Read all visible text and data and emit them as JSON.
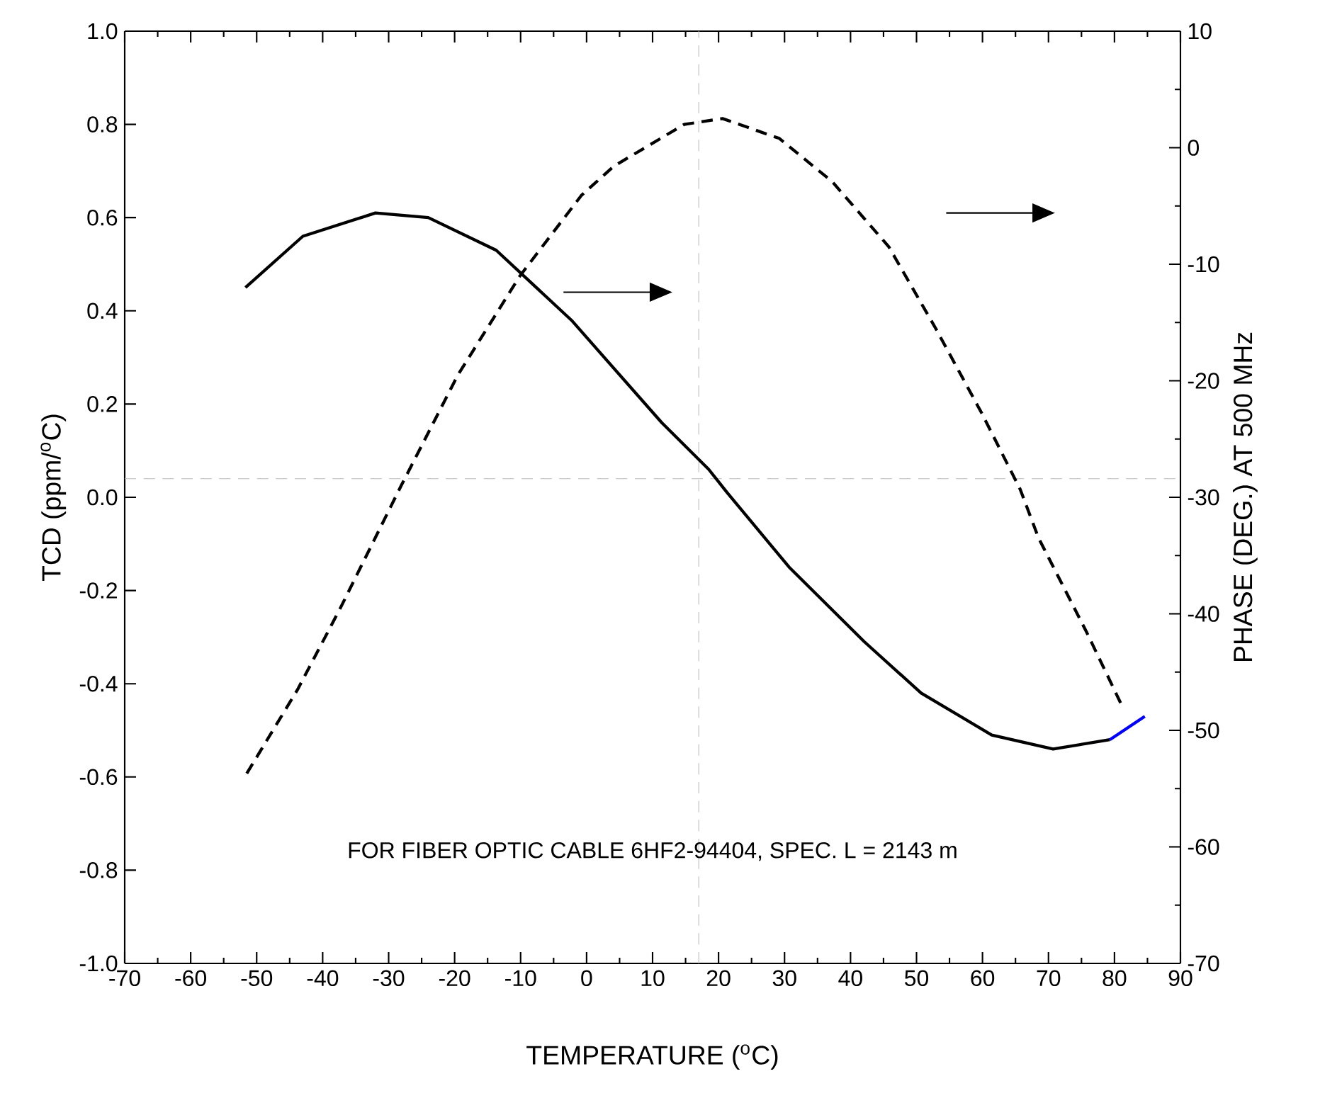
{
  "chart_data": {
    "type": "line",
    "xlabel": "TEMPERATURE ($^{o}$C)",
    "ylabel": "TCD (ppm/$^{o}$C)",
    "y2label": "PHASE (DEG.)  AT 500 MHz",
    "xlim": [
      -70,
      90
    ],
    "xticks": [
      -70,
      -60,
      -50,
      -40,
      -30,
      -20,
      -10,
      0,
      10,
      20,
      30,
      40,
      50,
      60,
      70,
      80,
      90
    ],
    "ylim": [
      -1,
      1
    ],
    "yticks": [
      {
        "value": -1,
        "label": "-1.0"
      },
      {
        "value": -0.8,
        "label": "-0.8"
      },
      {
        "value": -0.6,
        "label": "-0.6"
      },
      {
        "value": -0.4,
        "label": "-0.4"
      },
      {
        "value": -0.2,
        "label": "-0.2"
      },
      {
        "value": 0,
        "label": "0.0"
      },
      {
        "value": 0.2,
        "label": "0.2"
      },
      {
        "value": 0.4,
        "label": "0.4"
      },
      {
        "value": 0.6,
        "label": "0.6"
      },
      {
        "value": 0.8,
        "label": "0.8"
      },
      {
        "value": 1,
        "label": "1.0"
      }
    ],
    "y2lim": [
      -70,
      10
    ],
    "y2ticks": [
      -70,
      -60,
      -50,
      -40,
      -30,
      -20,
      -10,
      0,
      10
    ],
    "marker": "none",
    "series": [
      {
        "color": "#000000",
        "line_style": "solid",
        "x": [
          -51.7,
          -43,
          -32,
          -24,
          -13.7,
          -2.3,
          11.4,
          18.5,
          21.3,
          30.7,
          42.1,
          50.7,
          61.4,
          70.7,
          79.3
        ],
        "values": [
          0.45,
          0.56,
          0.61,
          0.6,
          0.53,
          0.38,
          0.16,
          0.06,
          0.01,
          -0.15,
          -0.31,
          -0.42,
          -0.51,
          -0.54,
          -0.52
        ]
      },
      {
        "color": "#0000ff",
        "line_style": "solid",
        "x": [
          79.3,
          84.6
        ],
        "values": [
          -0.52,
          -0.47
        ]
      },
      {
        "color": "#000000",
        "line_style": "dashed",
        "axis": "y2",
        "x": [
          -51.5,
          -43.8,
          -37.4,
          -28.1,
          -19.5,
          -10.1,
          -0.8,
          4.1,
          14.8,
          20.6,
          29.2,
          37.2,
          45.8,
          52.9,
          59.9,
          65.7,
          68.5,
          75.8,
          81.4
        ],
        "values": [
          -53.7,
          -46.5,
          -39.6,
          -29.0,
          -19.5,
          -11.0,
          -4.1,
          -1.6,
          2.0,
          2.5,
          0.8,
          -2.9,
          -8.5,
          -15.5,
          -22.8,
          -29.3,
          -33.5,
          -41.6,
          -48.2
        ]
      }
    ],
    "ref_lines": [
      {
        "axis": "x",
        "value": 17,
        "color": "#bbbbbb",
        "line_style": "dashed"
      },
      {
        "axis": "y",
        "value": 0.04,
        "color": "#bbbbbb",
        "line_style": "dashed"
      }
    ],
    "annotations": [
      "FOR FIBER OPTIC CABLE  6HF2-94404, SPEC. L = 2143 m"
    ]
  }
}
